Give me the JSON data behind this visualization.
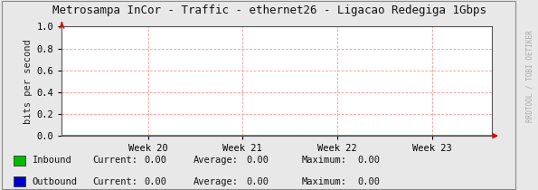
{
  "title": "Metrosampa InCor - Traffic - ethernet26 - Ligacao Redegiga 1Gbps",
  "ylabel": "bits per second",
  "x_tick_labels": [
    "Week 20",
    "Week 21",
    "Week 22",
    "Week 23"
  ],
  "x_tick_positions": [
    0.2,
    0.42,
    0.64,
    0.86
  ],
  "ylim": [
    0.0,
    1.0
  ],
  "yticks": [
    0.0,
    0.2,
    0.4,
    0.6,
    0.8,
    1.0
  ],
  "background_color": "#e8e8e8",
  "plot_bg_color": "#ffffff",
  "grid_color": "#ff9999",
  "border_color": "#555555",
  "fig_border_color": "#888888",
  "title_color": "#111111",
  "axis_color": "#222222",
  "inbound_color": "#00bb00",
  "outbound_color": "#0000cc",
  "legend": [
    {
      "label": "Inbound",
      "current": "0.00",
      "average": "0.00",
      "maximum": "0.00",
      "color": "#00bb00"
    },
    {
      "label": "Outbound",
      "current": "0.00",
      "average": "0.00",
      "maximum": "0.00",
      "color": "#0000cc"
    }
  ],
  "watermark": "RRDTOOL / TOBI OETIKER",
  "arrow_color": "#cc0000",
  "font_family": "DejaVu Sans Mono",
  "title_fontsize": 9.0,
  "tick_fontsize": 7.5,
  "legend_fontsize": 7.5,
  "watermark_fontsize": 5.5
}
